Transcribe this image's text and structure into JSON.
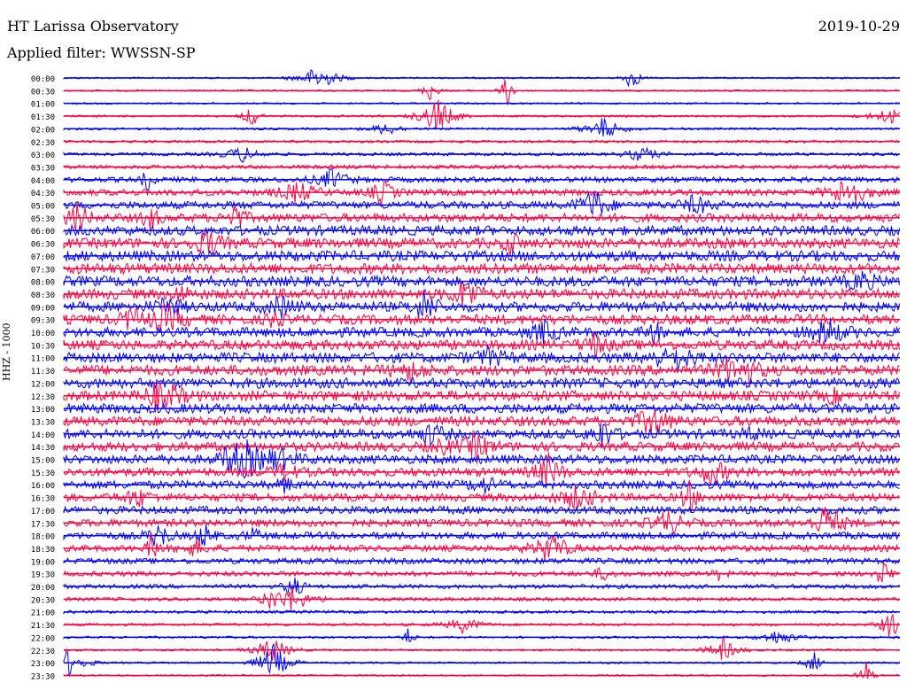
{
  "header": {
    "station": "HT Larissa Observatory",
    "date": "2019-10-29",
    "filter": "Applied filter: WWSSN-SP"
  },
  "channel_label": "HHZ - 1000",
  "colors": {
    "blue": "#0000ff",
    "red": "#ff0040"
  },
  "chart_data": {
    "type": "line",
    "title": "HT Larissa Observatory",
    "subtitle": "Applied filter: WWSSN-SP",
    "ylabel": "HHZ - 1000",
    "traces": [
      "00:00",
      "00:30",
      "01:00",
      "01:30",
      "02:00",
      "02:30",
      "03:00",
      "03:30",
      "04:00",
      "04:30",
      "05:00",
      "05:30",
      "06:00",
      "06:30",
      "07:00",
      "07:30",
      "08:00",
      "08:30",
      "09:00",
      "09:30",
      "10:00",
      "10:30",
      "11:00",
      "11:30",
      "12:00",
      "12:30",
      "13:00",
      "13:30",
      "14:00",
      "14:30",
      "15:00",
      "15:30",
      "16:00",
      "16:30",
      "17:00",
      "17:30",
      "18:00",
      "18:30",
      "19:00",
      "19:30",
      "20:00",
      "20:30",
      "21:00",
      "21:30",
      "22:00",
      "22:30",
      "23:00",
      "23:30"
    ],
    "trace_colors": [
      "blue",
      "red"
    ],
    "noise_amplitude": [
      1,
      1,
      1,
      1.2,
      1.3,
      1.5,
      1.8,
      2.2,
      3,
      3.6,
      4.2,
      4.8,
      5.5,
      5.8,
      6,
      6,
      6,
      5.8,
      5.6,
      5.5,
      5.5,
      5.6,
      5.8,
      5.8,
      5.8,
      5.7,
      5.6,
      5.5,
      5.4,
      5.2,
      5,
      4.8,
      4.6,
      4.5,
      4.4,
      4.2,
      4,
      3.6,
      3.2,
      2.8,
      2.4,
      2,
      1.7,
      1.5,
      1.3,
      1.2,
      1.1,
      1
    ]
  }
}
